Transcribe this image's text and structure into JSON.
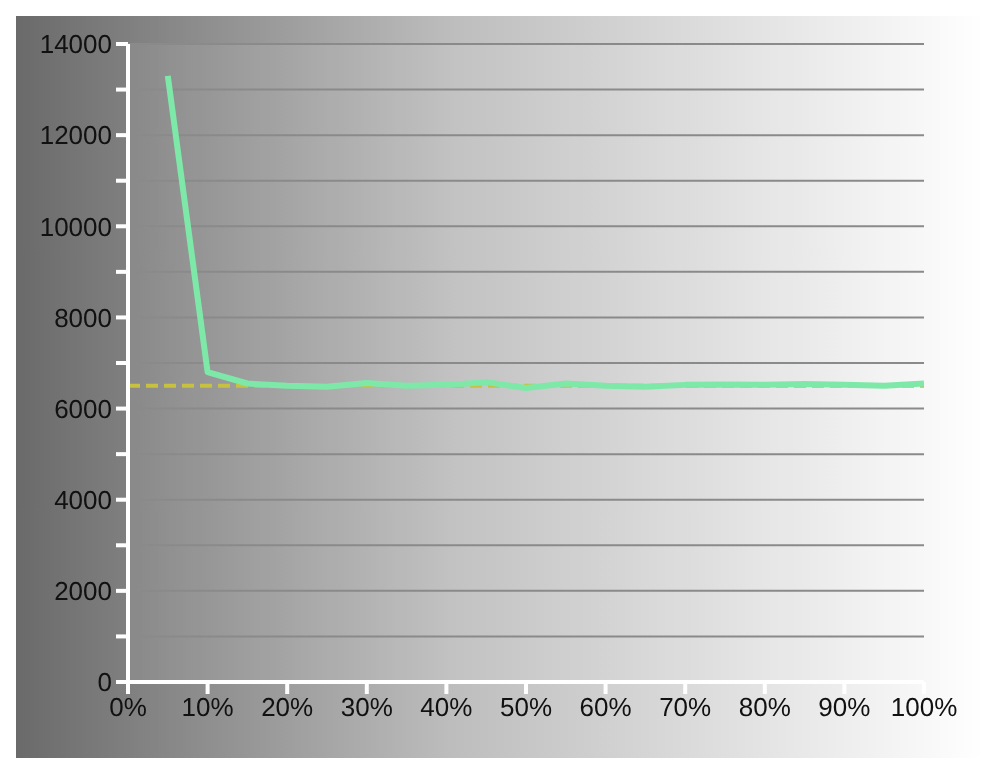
{
  "chart_data": {
    "type": "line",
    "x": [
      5,
      10,
      15,
      20,
      25,
      30,
      35,
      40,
      45,
      50,
      55,
      60,
      65,
      70,
      75,
      80,
      85,
      90,
      95,
      100
    ],
    "series": [
      {
        "color": "#7ee8a8",
        "values": [
          13300,
          6800,
          6550,
          6500,
          6480,
          6560,
          6500,
          6520,
          6580,
          6450,
          6550,
          6500,
          6480,
          6520,
          6530,
          6520,
          6540,
          6520,
          6500,
          6550
        ]
      }
    ],
    "xlim": [
      0,
      100
    ],
    "xticks": [
      {
        "value": 0,
        "label": "0%"
      },
      {
        "value": 10,
        "label": "10%"
      },
      {
        "value": 20,
        "label": "20%"
      },
      {
        "value": 30,
        "label": "30%"
      },
      {
        "value": 40,
        "label": "40%"
      },
      {
        "value": 50,
        "label": "50%"
      },
      {
        "value": 60,
        "label": "60%"
      },
      {
        "value": 70,
        "label": "70%"
      },
      {
        "value": 80,
        "label": "80%"
      },
      {
        "value": 90,
        "label": "90%"
      },
      {
        "value": 100,
        "label": "100%"
      }
    ],
    "ylim": [
      0,
      14000
    ],
    "yticks": [
      0,
      {
        "value": 1000,
        "label": null
      },
      2000,
      {
        "value": 3000,
        "label": null
      },
      4000,
      {
        "value": 5000,
        "label": null
      },
      6000,
      {
        "value": 7000,
        "label": null
      },
      8000,
      {
        "value": 9000,
        "label": null
      },
      10000,
      {
        "value": 11000,
        "label": null
      },
      12000,
      {
        "value": 13000,
        "label": null
      },
      14000
    ],
    "grid": "y",
    "marker": "none",
    "line_style": "solid",
    "ref_lines": [
      {
        "axis": "y",
        "value": 6500,
        "color": "#c8c040",
        "line_style": "dashed"
      }
    ]
  }
}
